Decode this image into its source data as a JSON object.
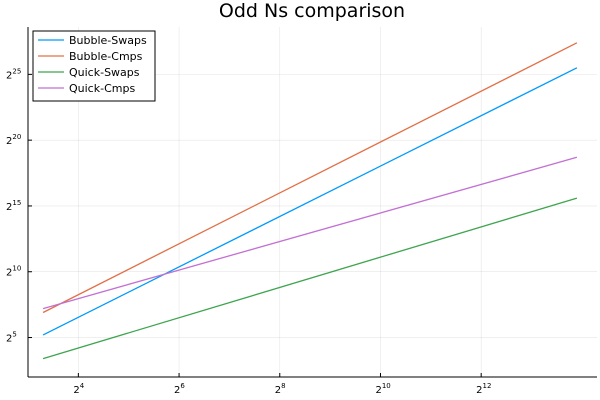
{
  "chart_data": {
    "type": "line",
    "title": "Odd Ns comparison",
    "xlabel": "",
    "ylabel": "",
    "x_scale": "log2",
    "y_scale": "log2",
    "x_exponent_range": [
      3.0,
      14.3
    ],
    "y_exponent_range": [
      2.0,
      28.6
    ],
    "x_ticks": [
      {
        "base": "2",
        "exp": "4",
        "value": 4
      },
      {
        "base": "2",
        "exp": "6",
        "value": 6
      },
      {
        "base": "2",
        "exp": "8",
        "value": 8
      },
      {
        "base": "2",
        "exp": "10",
        "value": 10
      },
      {
        "base": "2",
        "exp": "12",
        "value": 12
      }
    ],
    "y_ticks": [
      {
        "base": "2",
        "exp": "5",
        "value": 5
      },
      {
        "base": "2",
        "exp": "10",
        "value": 10
      },
      {
        "base": "2",
        "exp": "15",
        "value": 15
      },
      {
        "base": "2",
        "exp": "20",
        "value": 20
      },
      {
        "base": "2",
        "exp": "25",
        "value": 25
      }
    ],
    "grid": true,
    "legend_position": "top-left",
    "x": [
      3.3,
      13.9
    ],
    "series": [
      {
        "name": "Bubble-Swaps",
        "color": "#009AFA",
        "y": [
          5.2,
          25.5
        ]
      },
      {
        "name": "Bubble-Cmps",
        "color": "#E26F46",
        "y": [
          6.9,
          27.4
        ]
      },
      {
        "name": "Quick-Swaps",
        "color": "#3EA44E",
        "y": [
          3.4,
          15.6
        ]
      },
      {
        "name": "Quick-Cmps",
        "color": "#C270D3",
        "y": [
          7.2,
          18.7
        ]
      }
    ]
  }
}
